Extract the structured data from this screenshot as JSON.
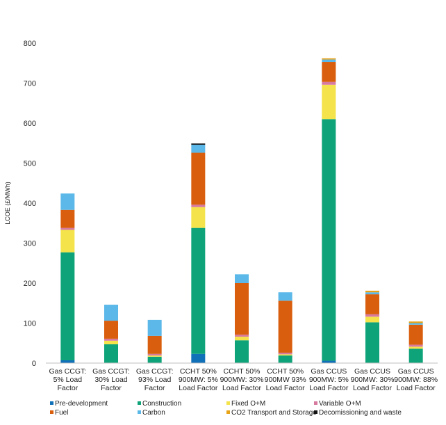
{
  "chart_data": {
    "type": "bar",
    "stacked": true,
    "title": "",
    "xlabel": "",
    "ylabel": "LCOE (£/MWh)",
    "ylim": [
      0,
      800
    ],
    "yticks": [
      0,
      100,
      200,
      300,
      400,
      500,
      600,
      700,
      800
    ],
    "grid": false,
    "legend_position": "bottom",
    "categories": [
      [
        "Gas CCGT:",
        "5% Load",
        "Factor"
      ],
      [
        "Gas CCGT:",
        "30% Load",
        "Factor"
      ],
      [
        "Gas CCGT:",
        "93% Load",
        "Factor"
      ],
      [
        "CCHT 50%",
        "900MW: 5%",
        "Load Factor"
      ],
      [
        "CCHT 50%",
        "900MW: 30%",
        "Load Factor"
      ],
      [
        "CCHT 50%",
        "900MW 93%",
        "Load Factor"
      ],
      [
        "Gas CCUS",
        "900MW: 5%",
        "Load Factor"
      ],
      [
        "Gas CCUS",
        "900MW: 30%",
        "Load Factor"
      ],
      [
        "Gas CCUS",
        "900MW: 88%",
        "Load Factor"
      ]
    ],
    "series": [
      {
        "name": "Pre-development",
        "color": "#1070B8",
        "values": [
          7,
          1,
          1,
          23,
          1,
          1,
          6,
          1,
          1
        ]
      },
      {
        "name": "Construction",
        "color": "#0FA37A",
        "values": [
          270,
          46,
          15,
          315,
          56,
          18,
          604,
          101,
          35
        ]
      },
      {
        "name": "Fixed O+M",
        "color": "#F4E34A",
        "values": [
          56,
          9,
          3,
          52,
          9,
          3,
          86,
          14,
          5
        ]
      },
      {
        "name": "Variable O+M",
        "color": "#D77AA0",
        "values": [
          5,
          5,
          4,
          6,
          5,
          4,
          7,
          6,
          5
        ]
      },
      {
        "name": "Fuel",
        "color": "#D95F0E",
        "values": [
          45,
          45,
          45,
          130,
          129,
          130,
          50,
          50,
          50
        ]
      },
      {
        "name": "Carbon",
        "color": "#5BB8E8",
        "values": [
          41,
          40,
          40,
          20,
          22,
          21,
          6,
          5,
          4
        ]
      },
      {
        "name": "CO2 Transport and Storage",
        "color": "#E8A317",
        "values": [
          0,
          0,
          0,
          0,
          0,
          0,
          3,
          4,
          4
        ]
      },
      {
        "name": "Decomissioning and waste",
        "color": "#111111",
        "values": [
          0,
          0,
          0,
          3,
          0,
          0,
          0,
          0,
          0
        ]
      }
    ]
  }
}
